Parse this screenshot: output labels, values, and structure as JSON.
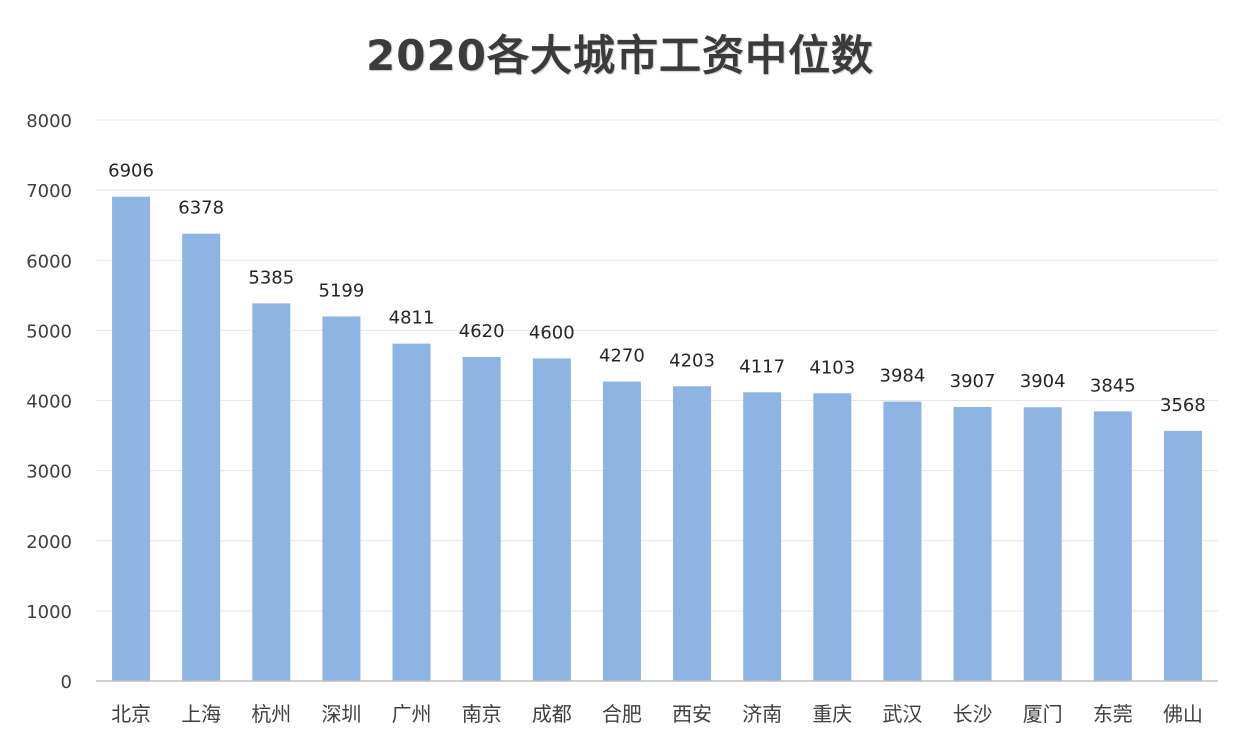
{
  "chart_data": {
    "type": "bar",
    "title": "2020各大城市工资中位数",
    "xlabel": "",
    "ylabel": "",
    "categories": [
      "北京",
      "上海",
      "杭州",
      "深圳",
      "广州",
      "南京",
      "成都",
      "合肥",
      "西安",
      "济南",
      "重庆",
      "武汉",
      "长沙",
      "厦门",
      "东莞",
      "佛山"
    ],
    "values": [
      6906,
      6378,
      5385,
      5199,
      4811,
      4620,
      4600,
      4270,
      4203,
      4117,
      4103,
      3984,
      3907,
      3904,
      3845,
      3568
    ],
    "ylim": [
      0,
      8000
    ],
    "yticks": [
      "0",
      "1000",
      "2000",
      "3000",
      "4000",
      "5000",
      "6000",
      "7000",
      "8000"
    ],
    "grid": true,
    "legend": "none",
    "data_labels": true,
    "bar_color": "#8db4e2",
    "gridline_color": "#e6e6e6",
    "axis_color": "#bfbfbf"
  }
}
